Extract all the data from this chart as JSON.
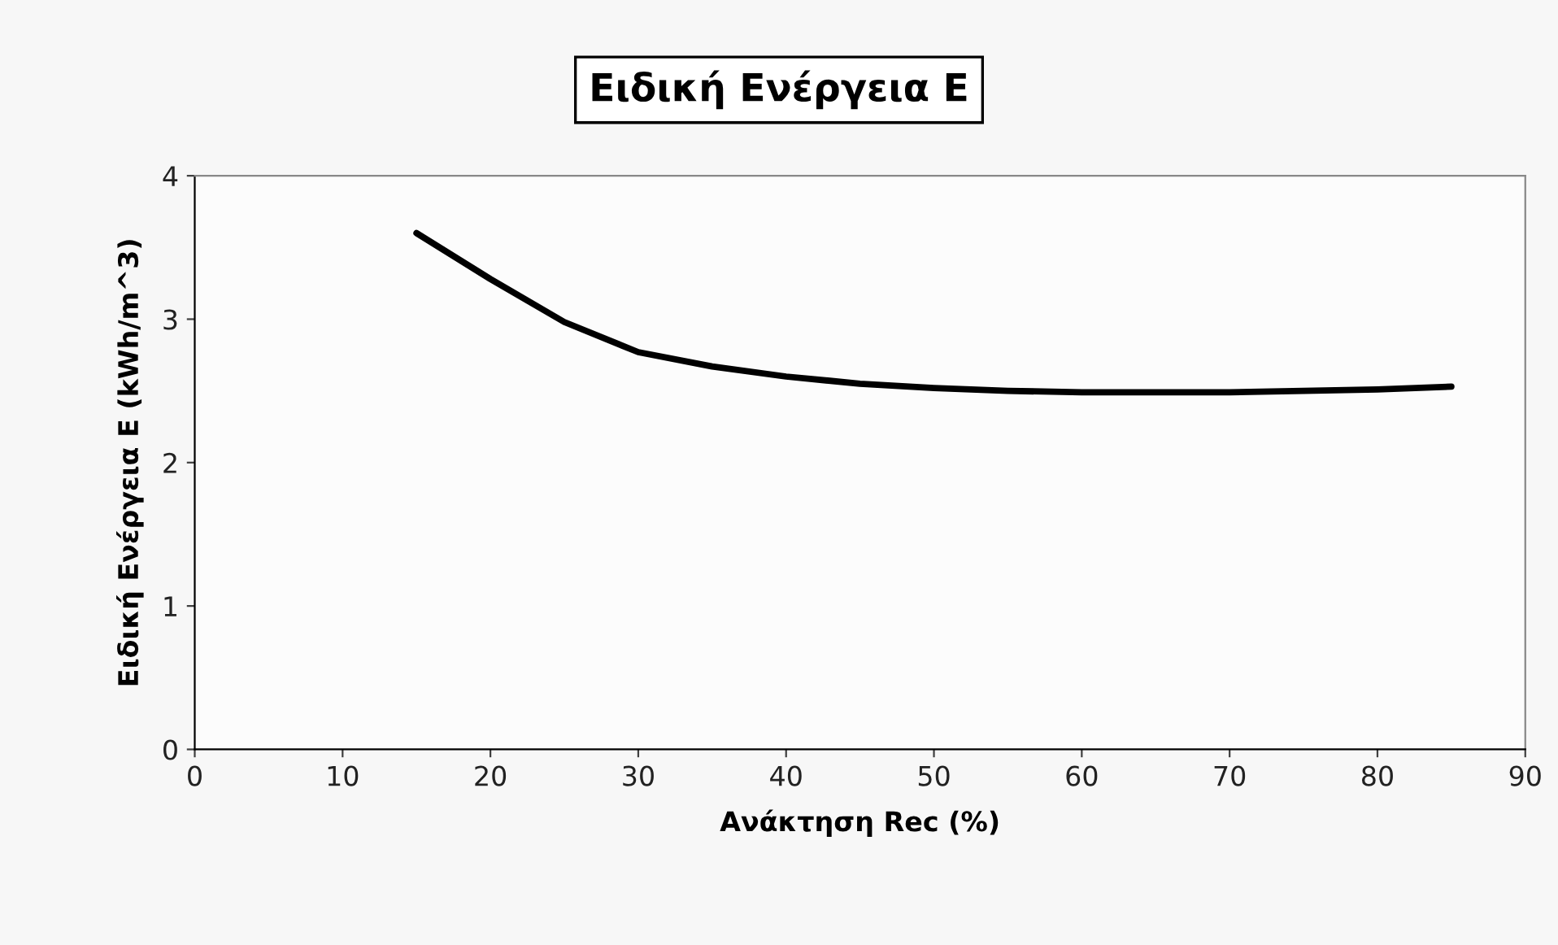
{
  "chart_data": {
    "type": "line",
    "title": "Ειδική Ενέργεια Ε",
    "xlabel": "Ανάκτηση Rec (%)",
    "ylabel": "Ειδική Ενέργεια Ε (kWh/m^3)",
    "x": [
      15,
      20,
      25,
      30,
      35,
      40,
      45,
      50,
      55,
      60,
      65,
      70,
      75,
      80,
      85
    ],
    "series": [
      {
        "color": "#000000",
        "values": [
          3.6,
          3.28,
          2.98,
          2.77,
          2.67,
          2.6,
          2.55,
          2.52,
          2.5,
          2.49,
          2.49,
          2.49,
          2.5,
          2.51,
          2.53
        ]
      }
    ],
    "xlim": [
      0,
      90
    ],
    "xticks": [
      0,
      10,
      20,
      30,
      40,
      50,
      60,
      70,
      80,
      90
    ],
    "ylim": [
      0,
      4
    ],
    "yticks": [
      0,
      1,
      2,
      3,
      4
    ],
    "grid": false,
    "legend": false,
    "marker": "none",
    "line_style": "solid"
  }
}
